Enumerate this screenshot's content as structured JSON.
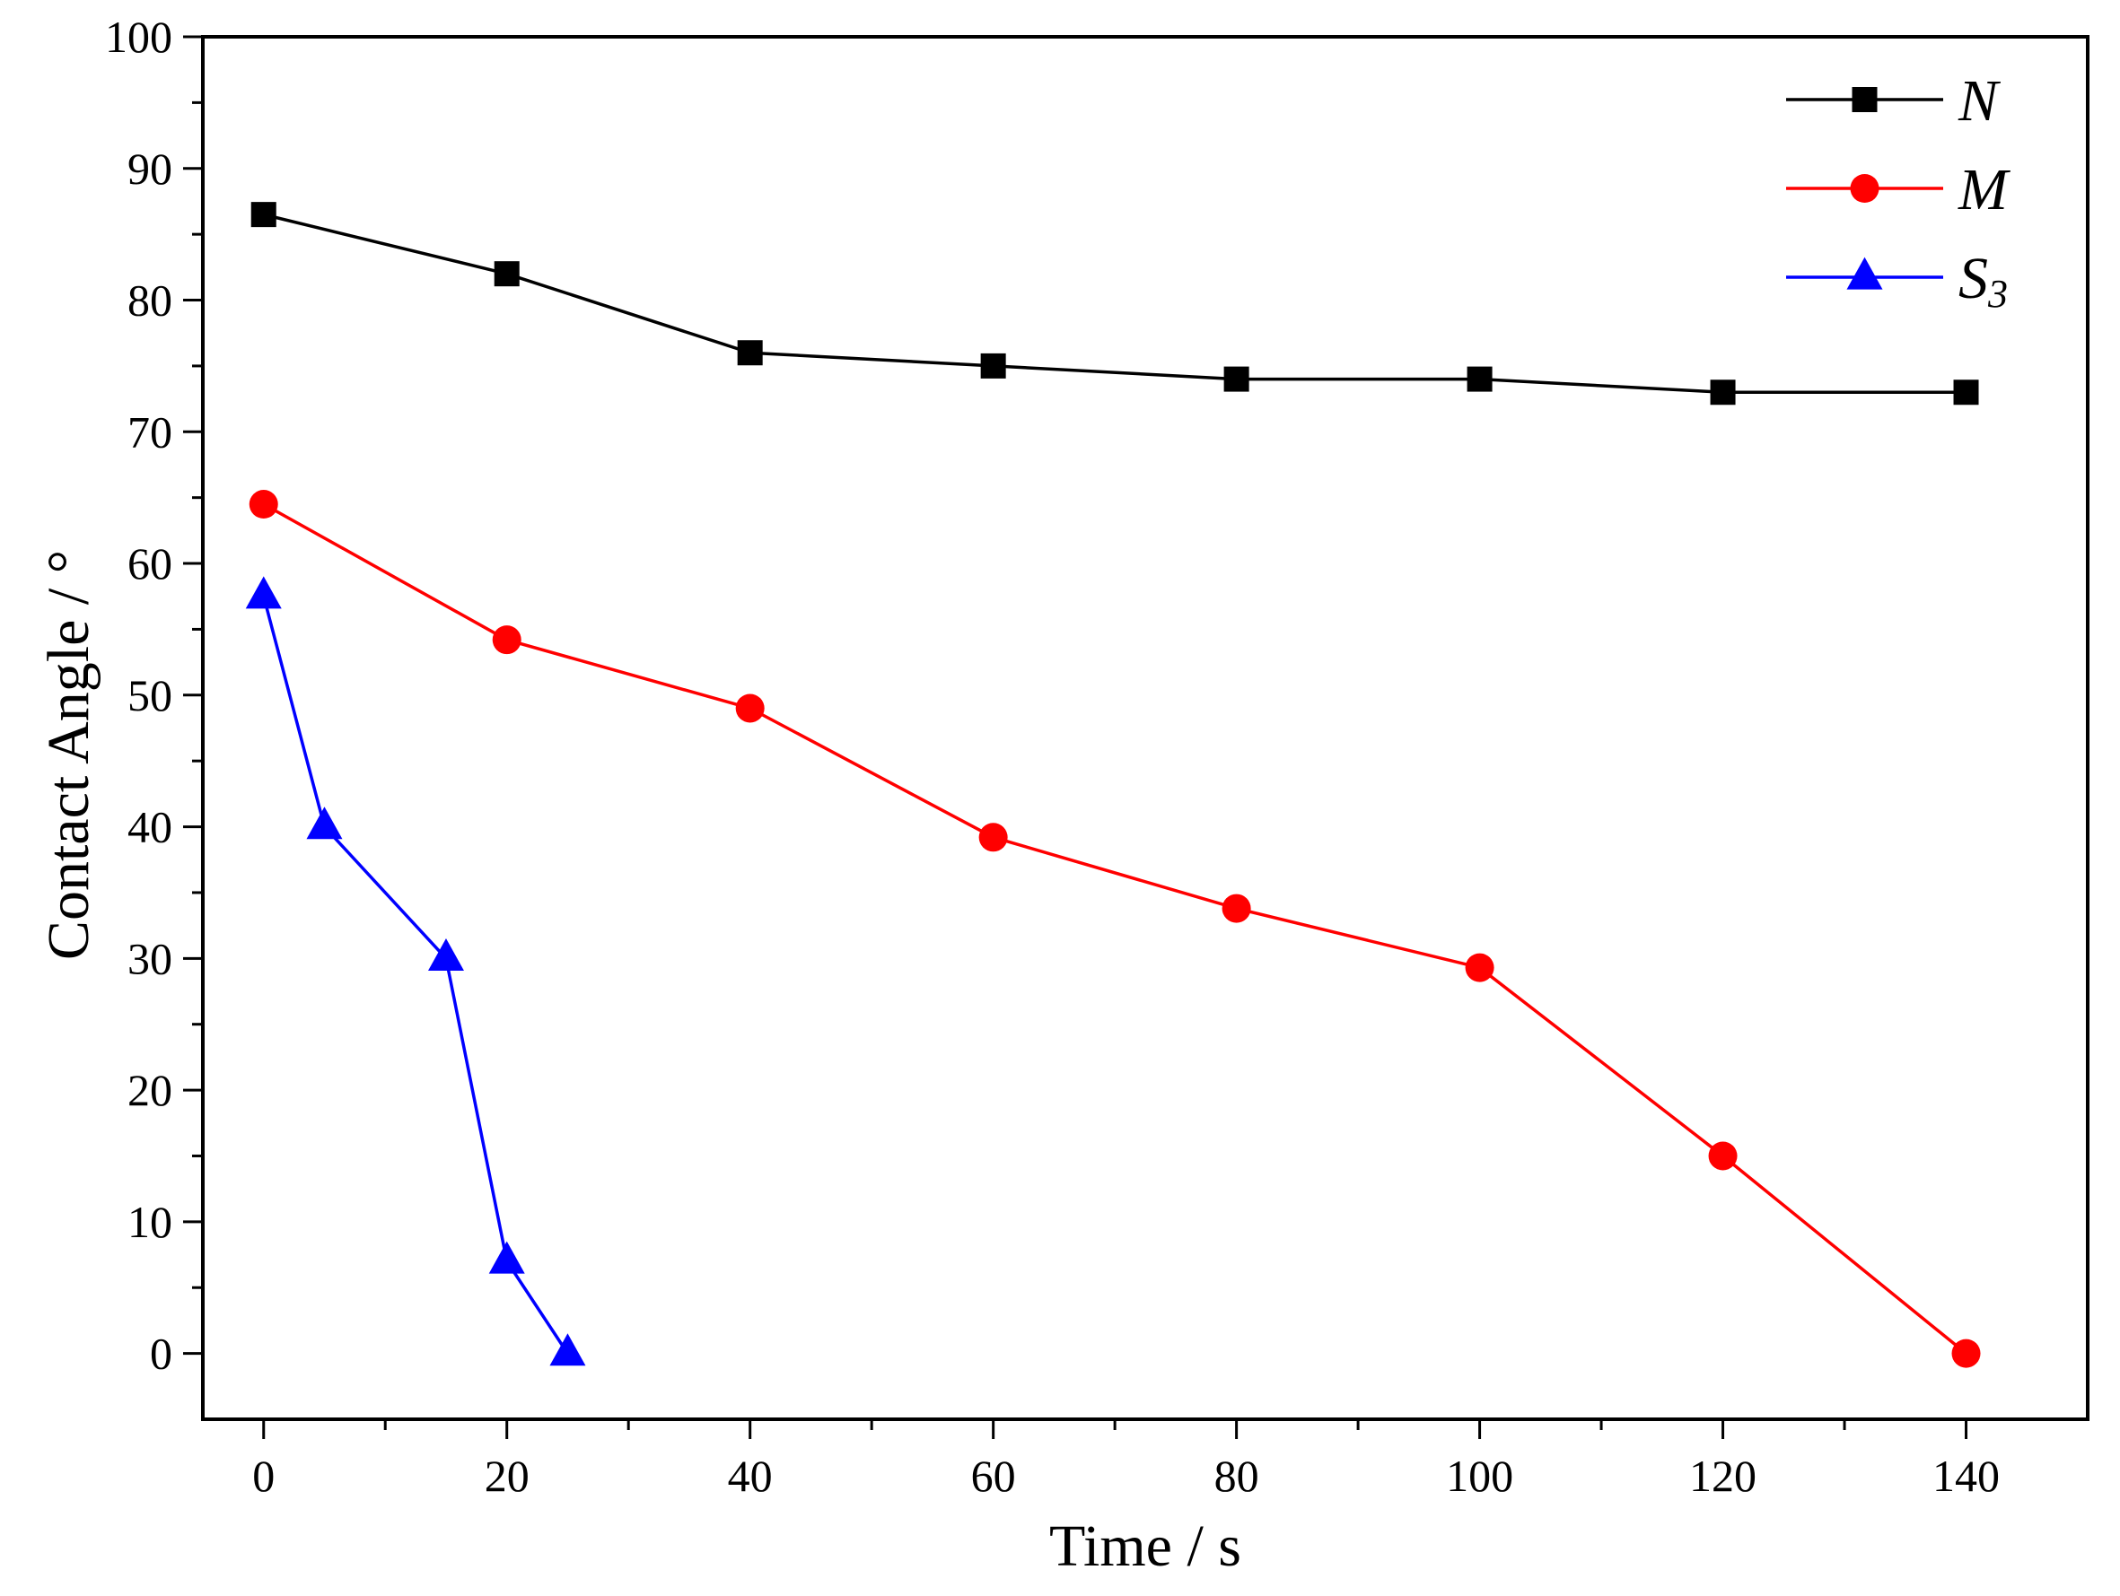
{
  "chart_data": {
    "type": "line",
    "title": "",
    "xlabel": "Time / s",
    "ylabel": "Contact Angle / °",
    "xlim": [
      -5,
      150
    ],
    "ylim": [
      -5,
      100
    ],
    "xticks": [
      0,
      20,
      40,
      60,
      80,
      100,
      120,
      140
    ],
    "xticks_minor": [
      10,
      30,
      50,
      70,
      90,
      110,
      130
    ],
    "yticks": [
      0,
      10,
      20,
      30,
      40,
      50,
      60,
      70,
      80,
      90,
      100
    ],
    "yticks_minor": [
      5,
      15,
      25,
      35,
      45,
      55,
      65,
      75,
      85,
      95
    ],
    "grid": false,
    "legend_position": "top-right",
    "series": [
      {
        "name": "N",
        "label_main": "N",
        "label_sub": "",
        "color": "#000000",
        "marker": "square",
        "x": [
          0,
          20,
          40,
          60,
          80,
          100,
          120,
          140
        ],
        "y": [
          86.5,
          82,
          76,
          75,
          74,
          74,
          73,
          73
        ]
      },
      {
        "name": "M",
        "label_main": "M",
        "label_sub": "",
        "color": "#ff0000",
        "marker": "circle",
        "x": [
          0,
          20,
          40,
          60,
          80,
          100,
          120,
          140
        ],
        "y": [
          64.5,
          54.2,
          49,
          39.2,
          33.8,
          29.3,
          15,
          0
        ]
      },
      {
        "name": "S3",
        "label_main": "S",
        "label_sub": "3",
        "color": "#0000ff",
        "marker": "triangle",
        "x": [
          0,
          5,
          15,
          20,
          25
        ],
        "y": [
          57.5,
          40,
          30,
          7,
          0
        ]
      }
    ]
  }
}
